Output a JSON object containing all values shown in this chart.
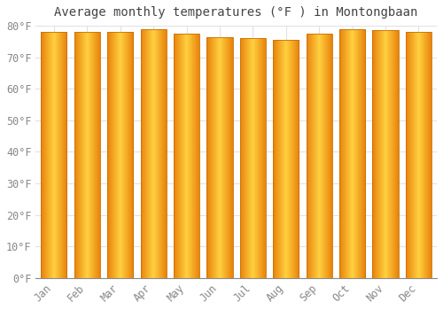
{
  "title": "Average monthly temperatures (°F ) in Montongbaan",
  "months": [
    "Jan",
    "Feb",
    "Mar",
    "Apr",
    "May",
    "Jun",
    "Jul",
    "Aug",
    "Sep",
    "Oct",
    "Nov",
    "Dec"
  ],
  "values": [
    78.0,
    78.0,
    78.0,
    79.0,
    77.5,
    76.5,
    76.0,
    75.5,
    77.5,
    79.0,
    78.5,
    78.0
  ],
  "bar_color_edge": "#E8820A",
  "bar_color_center": "#FFD040",
  "bar_border_color": "#C87000",
  "background_color": "#FFFFFF",
  "grid_color": "#E0E0E8",
  "ylim": [
    0,
    80
  ],
  "yticks": [
    0,
    10,
    20,
    30,
    40,
    50,
    60,
    70,
    80
  ],
  "tick_label_color": "#888888",
  "title_fontsize": 10,
  "tick_fontsize": 8.5,
  "bar_width": 0.78
}
